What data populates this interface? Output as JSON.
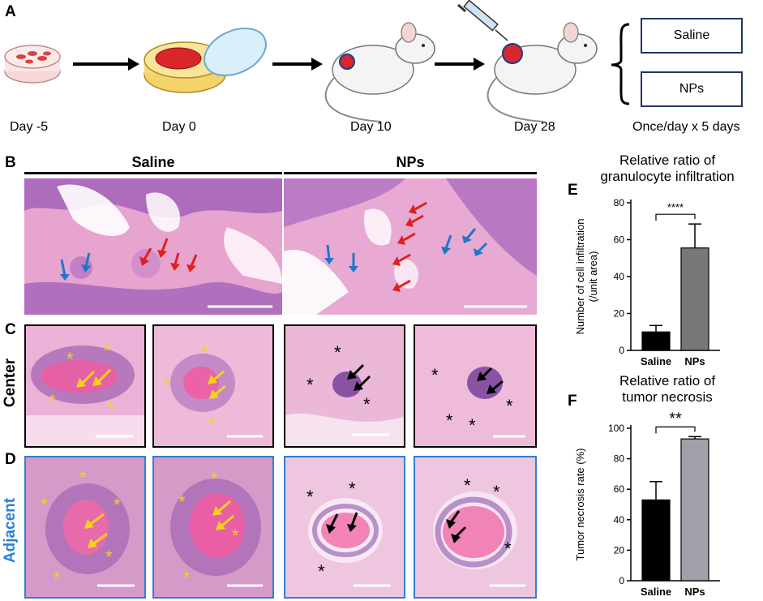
{
  "panels": {
    "A": "A",
    "B": "B",
    "C": "C",
    "D": "D",
    "E": "E",
    "F": "F"
  },
  "timeline": {
    "days": [
      "Day -5",
      "Day 0",
      "Day 10",
      "Day 28"
    ],
    "treatments": [
      "Saline",
      "NPs"
    ],
    "schedule": "Once/day x 5 days"
  },
  "histology": {
    "groups": [
      "Saline",
      "NPs"
    ],
    "rows": [
      "Center",
      "Adjacent"
    ]
  },
  "colors": {
    "he_pink": "#e8a8d0",
    "he_purple": "#8a4aa8",
    "center_border": "#000000",
    "adjacent_border": "#2e7fd6",
    "adjacent_label": "#2e7fd6",
    "blue_arrow": "#1f77c8",
    "red_arrow": "#e0201e",
    "yellow_arrow": "#f5d21a",
    "bar_saline": "#000000",
    "bar_nps_E": "#777777",
    "bar_nps_F": "#a0a0a8"
  },
  "chart_data": [
    {
      "type": "bar",
      "title": "Relative ratio of granulocyte infiltration",
      "title_lines": [
        "Relative ratio of",
        "granulocyte infiltration"
      ],
      "categories": [
        "Saline",
        "NPs"
      ],
      "values": [
        10,
        55.5
      ],
      "errors": [
        3.5,
        13
      ],
      "ylabel_lines": [
        "Number of cell infiltration",
        "(/unit area)"
      ],
      "ylim": [
        0,
        80
      ],
      "yticks": [
        0,
        20,
        40,
        60,
        80
      ],
      "significance": "****"
    },
    {
      "type": "bar",
      "title": "Relative ratio of tumor necrosis",
      "title_lines": [
        "Relative ratio of",
        "tumor necrosis"
      ],
      "categories": [
        "Saline",
        "NPs"
      ],
      "values": [
        53,
        93
      ],
      "errors": [
        12,
        1.5
      ],
      "ylabel_lines": [
        "Tumor necrosis rate (%)"
      ],
      "ylim": [
        0,
        100
      ],
      "yticks": [
        0,
        20,
        40,
        60,
        80,
        100
      ],
      "significance": "**"
    }
  ]
}
